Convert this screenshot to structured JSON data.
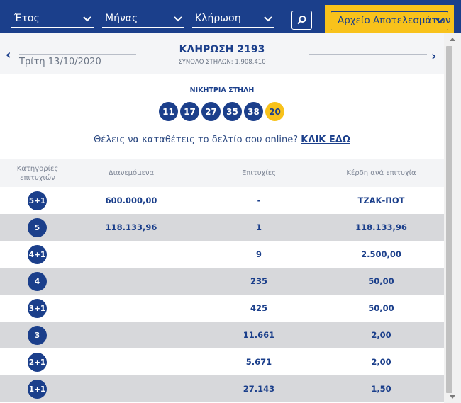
{
  "filters": {
    "year": "Έτος",
    "month": "Μήνας",
    "draw": "Κλήρωση",
    "archive": "Αρχείο Αποτελεσμάτων"
  },
  "draw": {
    "date": "Τρίτη 13/10/2020",
    "title": "ΚΛΗΡΩΣΗ 2193",
    "total_columns": "ΣΥΝΟΛΟ ΣΤΗΛΩΝ: 1.908.410"
  },
  "winning": {
    "title": "ΝΙΚΗΤΡΙΑ ΣΤΗΛΗ",
    "numbers": [
      "11",
      "17",
      "27",
      "35",
      "38"
    ],
    "joker": "20"
  },
  "cta": {
    "text": "Θέλεις να καταθέτεις το δελτίο σου online?",
    "link": "ΚΛΙΚ ΕΔΩ"
  },
  "table": {
    "headers": {
      "category": "Κατηγορίες επιτυχιών",
      "distributed": "Διανεμόμενα",
      "winners": "Επιτυχίες",
      "payout": "Κέρδη ανά επιτυχία"
    },
    "rows": [
      {
        "category": "5+1",
        "distributed": "600.000,00",
        "winners": "-",
        "payout": "ΤΖΑΚ-ΠΟΤ"
      },
      {
        "category": "5",
        "distributed": "118.133,96",
        "winners": "1",
        "payout": "118.133,96"
      },
      {
        "category": "4+1",
        "distributed": "",
        "winners": "9",
        "payout": "2.500,00"
      },
      {
        "category": "4",
        "distributed": "",
        "winners": "235",
        "payout": "50,00"
      },
      {
        "category": "3+1",
        "distributed": "",
        "winners": "425",
        "payout": "50,00"
      },
      {
        "category": "3",
        "distributed": "",
        "winners": "11.661",
        "payout": "2,00"
      },
      {
        "category": "2+1",
        "distributed": "",
        "winners": "5.671",
        "payout": "2,00"
      },
      {
        "category": "1+1",
        "distributed": "",
        "winners": "27.143",
        "payout": "1,50"
      }
    ]
  },
  "colors": {
    "primary": "#1b3f8b",
    "accent": "#f8c21b"
  }
}
